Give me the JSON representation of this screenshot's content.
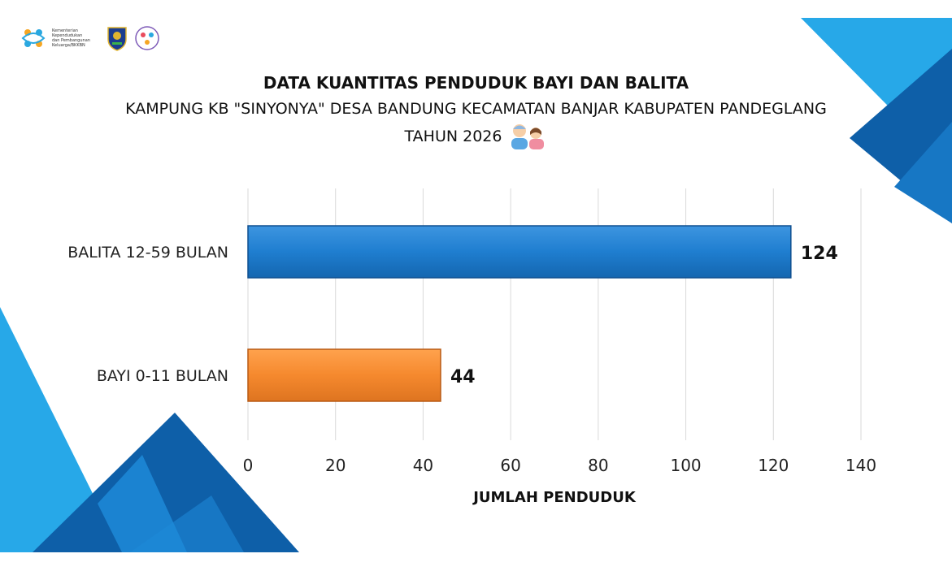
{
  "logos": {
    "ministry_lines": [
      "Kementerian",
      "Kependudukan",
      "dan Pembangunan",
      "Keluarga/BKKBN"
    ],
    "ministry_logo_icon": "bkkbn-logo-icon",
    "crest_icon": "regional-crest-icon",
    "kampung_kb_icon": "kampung-kb-logo-icon"
  },
  "header": {
    "title": "DATA KUANTITAS PENDUDUK BAYI DAN BALITA",
    "subtitle": "KAMPUNG KB \"SINYONYA\" DESA BANDUNG KECAMATAN BANJAR KABUPATEN PANDEGLANG",
    "year": "TAHUN 2026",
    "emoji_icon": "children-playing-icon"
  },
  "colors": {
    "accent_blue": "#1f7ed0",
    "accent_orange": "#f5892e",
    "deco_light": "#27a8e8",
    "deco_dark": "#0e5fa8"
  },
  "chart_data": {
    "type": "bar",
    "orientation": "horizontal",
    "categories": [
      "BALITA 12-59 BULAN",
      "BAYI 0-11 BULAN"
    ],
    "values": [
      124,
      44
    ],
    "data_labels": [
      "124",
      "44"
    ],
    "bar_colors": [
      "#1f7ed0",
      "#f5892e"
    ],
    "xlabel": "JUMLAH PENDUDUK",
    "ylabel": "",
    "xlim": [
      0,
      140
    ],
    "xticks": [
      0,
      20,
      40,
      60,
      80,
      100,
      120,
      140
    ],
    "xtick_labels": [
      "0",
      "20",
      "40",
      "60",
      "80",
      "100",
      "120",
      "140"
    ],
    "grid": true,
    "legend": "none"
  }
}
